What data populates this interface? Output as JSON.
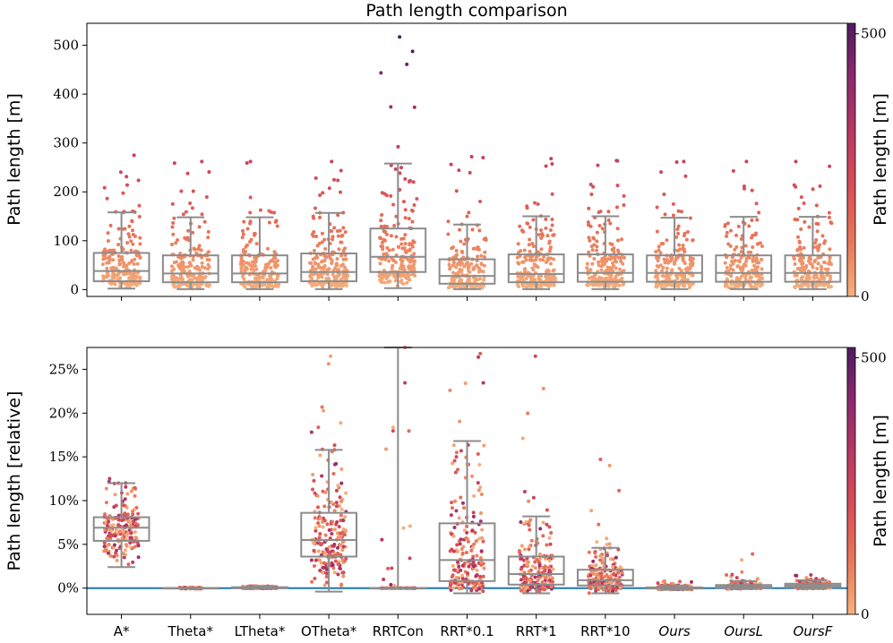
{
  "chart_data": {
    "type": "box_strip",
    "title": "Path length comparison",
    "categories": [
      {
        "label": "A*",
        "italic": false
      },
      {
        "label": "Theta*",
        "italic": false
      },
      {
        "label": "LTheta*",
        "italic": false
      },
      {
        "label": "OTheta*",
        "italic": false
      },
      {
        "label": "RRTCon",
        "italic": false
      },
      {
        "label": "RRT*0.1",
        "italic": false
      },
      {
        "label": "RRT*1",
        "italic": false
      },
      {
        "label": "RRT*10",
        "italic": false
      },
      {
        "label": "Ours",
        "italic": true
      },
      {
        "label": "OursL",
        "italic": true
      },
      {
        "label": "OursF",
        "italic": true
      }
    ],
    "colorbar": {
      "label": "Path length [m]",
      "range": [
        0,
        520
      ],
      "ticks": [
        {
          "value": 0,
          "label": "0"
        },
        {
          "value": 500,
          "label": "500"
        }
      ],
      "colors": [
        "#f5b07c",
        "#e8785a",
        "#d84f57",
        "#b83863",
        "#8c2a6e",
        "#4e1b5e"
      ]
    },
    "top": {
      "ylabel": "Path length [m]",
      "ylim": [
        -14,
        545
      ],
      "yticks": [
        {
          "value": 0,
          "label": "0"
        },
        {
          "value": 100,
          "label": "100"
        },
        {
          "value": 200,
          "label": "200"
        },
        {
          "value": 300,
          "label": "300"
        },
        {
          "value": 400,
          "label": "400"
        },
        {
          "value": 500,
          "label": "500"
        }
      ],
      "boxes": [
        {
          "whislo": 2,
          "q1": 17,
          "med": 38,
          "q3": 75,
          "whishi": 158,
          "max": 275
        },
        {
          "whislo": 1,
          "q1": 15,
          "med": 33,
          "q3": 70,
          "whishi": 148,
          "max": 262
        },
        {
          "whislo": 1,
          "q1": 15,
          "med": 33,
          "q3": 70,
          "whishi": 148,
          "max": 262
        },
        {
          "whislo": 1,
          "q1": 17,
          "med": 36,
          "q3": 74,
          "whishi": 157,
          "max": 262
        },
        {
          "whislo": 3,
          "q1": 36,
          "med": 67,
          "q3": 125,
          "whishi": 258,
          "max": 517
        },
        {
          "whislo": 1,
          "q1": 12,
          "med": 28,
          "q3": 62,
          "whishi": 133,
          "max": 272
        },
        {
          "whislo": 1,
          "q1": 15,
          "med": 32,
          "q3": 72,
          "whishi": 150,
          "max": 268
        },
        {
          "whislo": 1,
          "q1": 16,
          "med": 34,
          "q3": 72,
          "whishi": 150,
          "max": 264
        },
        {
          "whislo": 1,
          "q1": 16,
          "med": 34,
          "q3": 70,
          "whishi": 147,
          "max": 262
        },
        {
          "whislo": 1,
          "q1": 16,
          "med": 34,
          "q3": 70,
          "whishi": 149,
          "max": 262
        },
        {
          "whislo": 1,
          "q1": 16,
          "med": 34,
          "q3": 70,
          "whishi": 149,
          "max": 262
        }
      ]
    },
    "bottom": {
      "ylabel": "Path length [relative]",
      "ylim": [
        -3,
        27.5
      ],
      "reference_line": 0,
      "yticks": [
        {
          "value": 0,
          "label": "0%"
        },
        {
          "value": 5,
          "label": "5%"
        },
        {
          "value": 10,
          "label": "10%"
        },
        {
          "value": 15,
          "label": "15%"
        },
        {
          "value": 20,
          "label": "20%"
        },
        {
          "value": 25,
          "label": "25%"
        }
      ],
      "boxes": [
        {
          "whislo": 2.4,
          "q1": 5.4,
          "med": 6.9,
          "q3": 8.1,
          "whishi": 12.0,
          "max": 12.5,
          "min": 2.4
        },
        {
          "whislo": 0,
          "q1": 0,
          "med": 0,
          "q3": 0,
          "whishi": 0,
          "max": 0,
          "min": 0
        },
        {
          "whislo": 0,
          "q1": 0,
          "med": 0.05,
          "q3": 0.1,
          "whishi": 0.2,
          "max": 0.25,
          "min": 0
        },
        {
          "whislo": -0.4,
          "q1": 3.6,
          "med": 5.5,
          "q3": 8.6,
          "whishi": 15.8,
          "max": 26.5,
          "min": -0.4
        },
        {
          "whislo": 0,
          "q1": 0,
          "med": 0,
          "q3": 0,
          "whishi": 27.5,
          "max": 27.5,
          "min": 0
        },
        {
          "whislo": -0.6,
          "q1": 0.8,
          "med": 3.2,
          "q3": 7.4,
          "whishi": 16.8,
          "max": 26.8,
          "min": -0.6
        },
        {
          "whislo": -0.6,
          "q1": 0.4,
          "med": 1.6,
          "q3": 3.6,
          "whishi": 8.2,
          "max": 26.5,
          "min": -0.6
        },
        {
          "whislo": -0.6,
          "q1": 0.3,
          "med": 0.9,
          "q3": 2.1,
          "whishi": 4.6,
          "max": 14.7,
          "min": -0.6
        },
        {
          "whislo": -0.2,
          "q1": -0.05,
          "med": 0,
          "q3": 0.08,
          "whishi": 0.3,
          "max": 0.8,
          "min": -0.2
        },
        {
          "whislo": -0.1,
          "q1": 0.05,
          "med": 0.15,
          "q3": 0.35,
          "whishi": 0.8,
          "max": 3.9,
          "min": -0.1
        },
        {
          "whislo": -0.1,
          "q1": 0.1,
          "med": 0.3,
          "q3": 0.5,
          "whishi": 0.9,
          "max": 1.5,
          "min": -0.1
        }
      ]
    }
  }
}
